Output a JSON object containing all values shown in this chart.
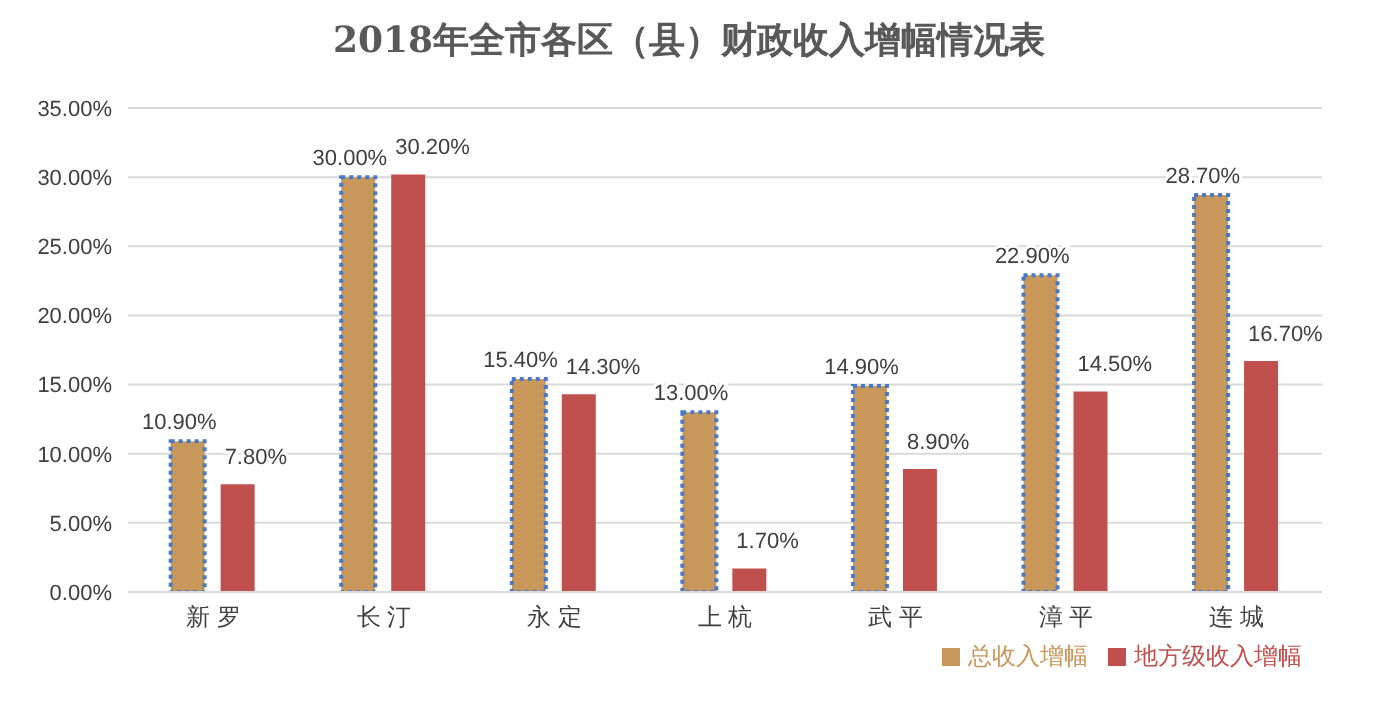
{
  "chart_data": {
    "type": "bar",
    "title": "2018年全市各区（县）财政收入增幅情况表",
    "categories": [
      "新 罗",
      "长 汀",
      "永 定",
      "上 杭",
      "武 平",
      "漳 平",
      "连 城"
    ],
    "series": [
      {
        "name": "总收入增幅",
        "color": "#c8975a",
        "values": [
          10.9,
          30.0,
          15.4,
          13.0,
          14.9,
          22.9,
          28.7
        ],
        "value_labels": [
          "10.90%",
          "30.00%",
          "15.40%",
          "13.00%",
          "14.90%",
          "22.90%",
          "28.70%"
        ]
      },
      {
        "name": "地方级收入增幅",
        "color": "#c0504d",
        "values": [
          7.8,
          30.2,
          14.3,
          1.7,
          8.9,
          14.5,
          16.7
        ],
        "value_labels": [
          "7.80%",
          "30.20%",
          "14.30%",
          "1.70%",
          "8.90%",
          "14.50%",
          "16.70%"
        ]
      }
    ],
    "ylim": [
      0,
      35
    ],
    "yticks": [
      {
        "value": 0,
        "label": "0.00%"
      },
      {
        "value": 5,
        "label": "5.00%"
      },
      {
        "value": 10,
        "label": "10.00%"
      },
      {
        "value": 15,
        "label": "15.00%"
      },
      {
        "value": 20,
        "label": "20.00%"
      },
      {
        "value": 25,
        "label": "25.00%"
      },
      {
        "value": 30,
        "label": "30.00%"
      },
      {
        "value": 35,
        "label": "35.00%"
      }
    ],
    "grid": "y",
    "legend": "bottom right"
  }
}
